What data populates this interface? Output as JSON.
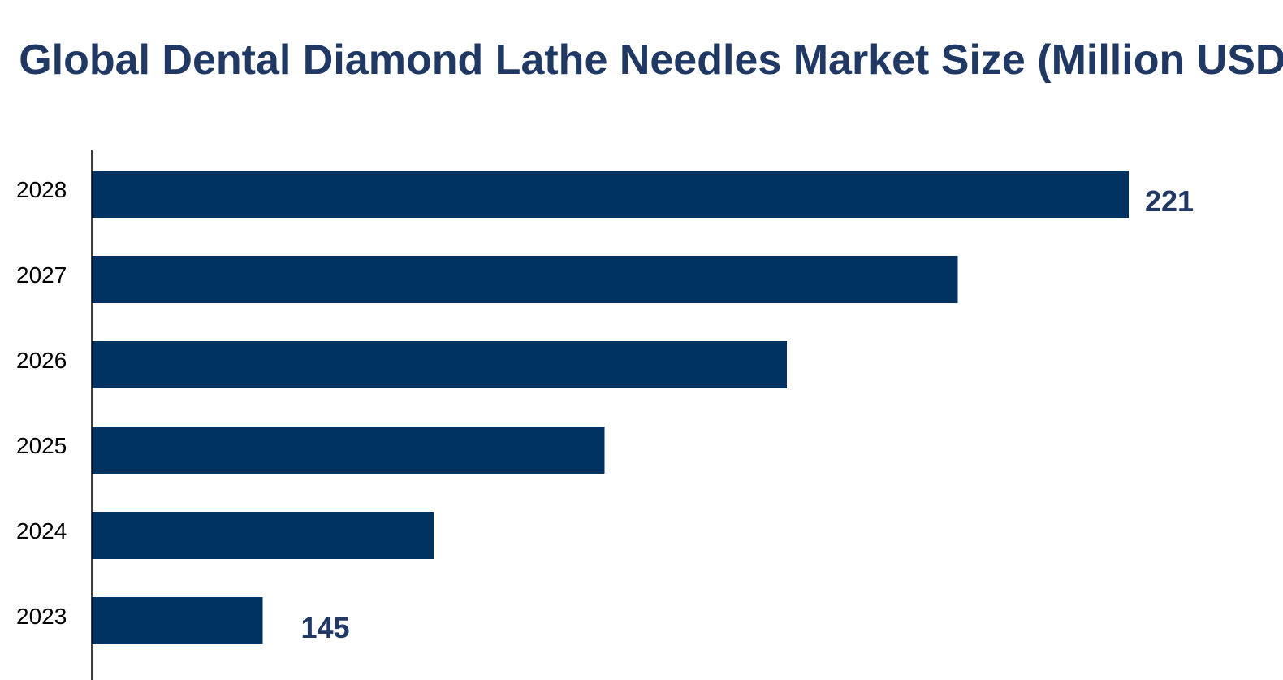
{
  "chart_data": {
    "type": "bar",
    "orientation": "horizontal",
    "title": "Global Dental Diamond Lathe Needles Market Size (Million USD)",
    "categories": [
      "2023",
      "2024",
      "2025",
      "2026",
      "2027",
      "2028"
    ],
    "values": [
      145,
      160,
      175,
      191,
      206,
      221
    ],
    "data_labels": {
      "2023": "145",
      "2028": "221"
    },
    "xlim": [
      130,
      221
    ],
    "grid": false,
    "bar_color": "#003361",
    "title_color": "#1f3864"
  }
}
